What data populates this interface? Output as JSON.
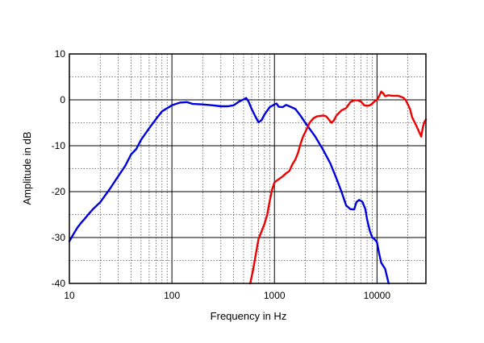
{
  "chart_data": {
    "type": "line",
    "xlabel": "Frequency in Hz",
    "ylabel": "Amplitude in dB",
    "xscale": "log",
    "xlim": [
      10,
      30000
    ],
    "ylim": [
      -40,
      10
    ],
    "grid": true,
    "x_tick_labels": [
      "10",
      "100",
      "1000",
      "10000"
    ],
    "y_tick_labels": [
      "10",
      "0",
      "-10",
      "-20",
      "-30",
      "-40"
    ],
    "colors": {
      "series_1": "#0000dd",
      "series_2": "#ee0000",
      "grid": "#555555",
      "frame": "#000000"
    },
    "series": [
      {
        "color": "#0000dd",
        "points": [
          [
            10,
            -30.8
          ],
          [
            11,
            -29.2
          ],
          [
            12,
            -27.8
          ],
          [
            13,
            -26.8
          ],
          [
            14,
            -26.0
          ],
          [
            15,
            -25.2
          ],
          [
            17,
            -23.8
          ],
          [
            20,
            -22.3
          ],
          [
            25,
            -19.3
          ],
          [
            30,
            -16.6
          ],
          [
            35,
            -14.4
          ],
          [
            40,
            -11.9
          ],
          [
            45,
            -10.7
          ],
          [
            50,
            -8.7
          ],
          [
            60,
            -6.2
          ],
          [
            70,
            -4.2
          ],
          [
            80,
            -2.5
          ],
          [
            100,
            -1.2
          ],
          [
            120,
            -0.6
          ],
          [
            140,
            -0.5
          ],
          [
            160,
            -0.9
          ],
          [
            200,
            -1.0
          ],
          [
            250,
            -1.2
          ],
          [
            300,
            -1.4
          ],
          [
            350,
            -1.4
          ],
          [
            400,
            -1.2
          ],
          [
            450,
            -0.4
          ],
          [
            500,
            0.1
          ],
          [
            530,
            0.4
          ],
          [
            560,
            -0.4
          ],
          [
            600,
            -2.0
          ],
          [
            650,
            -3.6
          ],
          [
            700,
            -4.9
          ],
          [
            750,
            -4.4
          ],
          [
            800,
            -3.2
          ],
          [
            900,
            -1.6
          ],
          [
            1000,
            -1.0
          ],
          [
            1050,
            -0.8
          ],
          [
            1100,
            -1.5
          ],
          [
            1200,
            -1.6
          ],
          [
            1300,
            -1.1
          ],
          [
            1400,
            -1.4
          ],
          [
            1600,
            -2.0
          ],
          [
            1800,
            -3.5
          ],
          [
            2000,
            -5.0
          ],
          [
            2200,
            -6.3
          ],
          [
            2500,
            -8.0
          ],
          [
            3000,
            -11.0
          ],
          [
            3500,
            -13.8
          ],
          [
            4000,
            -17.0
          ],
          [
            4500,
            -20.0
          ],
          [
            5000,
            -23.0
          ],
          [
            5500,
            -23.8
          ],
          [
            6000,
            -23.9
          ],
          [
            6300,
            -22.3
          ],
          [
            6700,
            -21.8
          ],
          [
            7200,
            -22.2
          ],
          [
            7700,
            -23.8
          ],
          [
            8000,
            -26.0
          ],
          [
            8500,
            -28.5
          ],
          [
            9000,
            -30.0
          ],
          [
            9500,
            -30.4
          ],
          [
            10000,
            -31.0
          ],
          [
            10500,
            -33.5
          ],
          [
            11000,
            -35.5
          ],
          [
            11500,
            -36.2
          ],
          [
            12000,
            -36.8
          ],
          [
            12500,
            -38.5
          ],
          [
            13000,
            -40.0
          ]
        ]
      },
      {
        "color": "#ee0000",
        "points": [
          [
            580,
            -40.0
          ],
          [
            620,
            -37.0
          ],
          [
            660,
            -33.5
          ],
          [
            700,
            -30.3
          ],
          [
            750,
            -28.6
          ],
          [
            800,
            -27.0
          ],
          [
            850,
            -25.0
          ],
          [
            900,
            -22.0
          ],
          [
            950,
            -19.5
          ],
          [
            1000,
            -18.0
          ],
          [
            1100,
            -17.3
          ],
          [
            1200,
            -16.7
          ],
          [
            1300,
            -16.0
          ],
          [
            1400,
            -15.5
          ],
          [
            1500,
            -14.0
          ],
          [
            1600,
            -13.0
          ],
          [
            1700,
            -11.5
          ],
          [
            1800,
            -9.5
          ],
          [
            1900,
            -8.0
          ],
          [
            2000,
            -7.0
          ],
          [
            2200,
            -5.0
          ],
          [
            2400,
            -4.0
          ],
          [
            2600,
            -3.6
          ],
          [
            2800,
            -3.5
          ],
          [
            3000,
            -3.4
          ],
          [
            3200,
            -3.6
          ],
          [
            3400,
            -4.3
          ],
          [
            3600,
            -5.0
          ],
          [
            3800,
            -4.5
          ],
          [
            4000,
            -3.5
          ],
          [
            4500,
            -2.3
          ],
          [
            5000,
            -1.8
          ],
          [
            5500,
            -0.5
          ],
          [
            6000,
            -0.1
          ],
          [
            6500,
            -0.1
          ],
          [
            7000,
            -0.4
          ],
          [
            7500,
            -1.2
          ],
          [
            8000,
            -1.3
          ],
          [
            8500,
            -1.2
          ],
          [
            9000,
            -0.8
          ],
          [
            9500,
            -0.3
          ],
          [
            10000,
            0.0
          ],
          [
            10500,
            0.8
          ],
          [
            11000,
            1.8
          ],
          [
            11500,
            1.4
          ],
          [
            12000,
            0.8
          ],
          [
            13000,
            1.0
          ],
          [
            14000,
            0.9
          ],
          [
            16000,
            0.9
          ],
          [
            17000,
            0.7
          ],
          [
            18000,
            0.5
          ],
          [
            19000,
            0.0
          ],
          [
            20000,
            -1.0
          ],
          [
            21000,
            -2.0
          ],
          [
            22000,
            -3.8
          ],
          [
            24000,
            -5.5
          ],
          [
            26000,
            -7.2
          ],
          [
            27000,
            -8.0
          ],
          [
            28000,
            -6.0
          ],
          [
            29000,
            -4.8
          ],
          [
            30000,
            -4.3
          ]
        ]
      }
    ]
  }
}
